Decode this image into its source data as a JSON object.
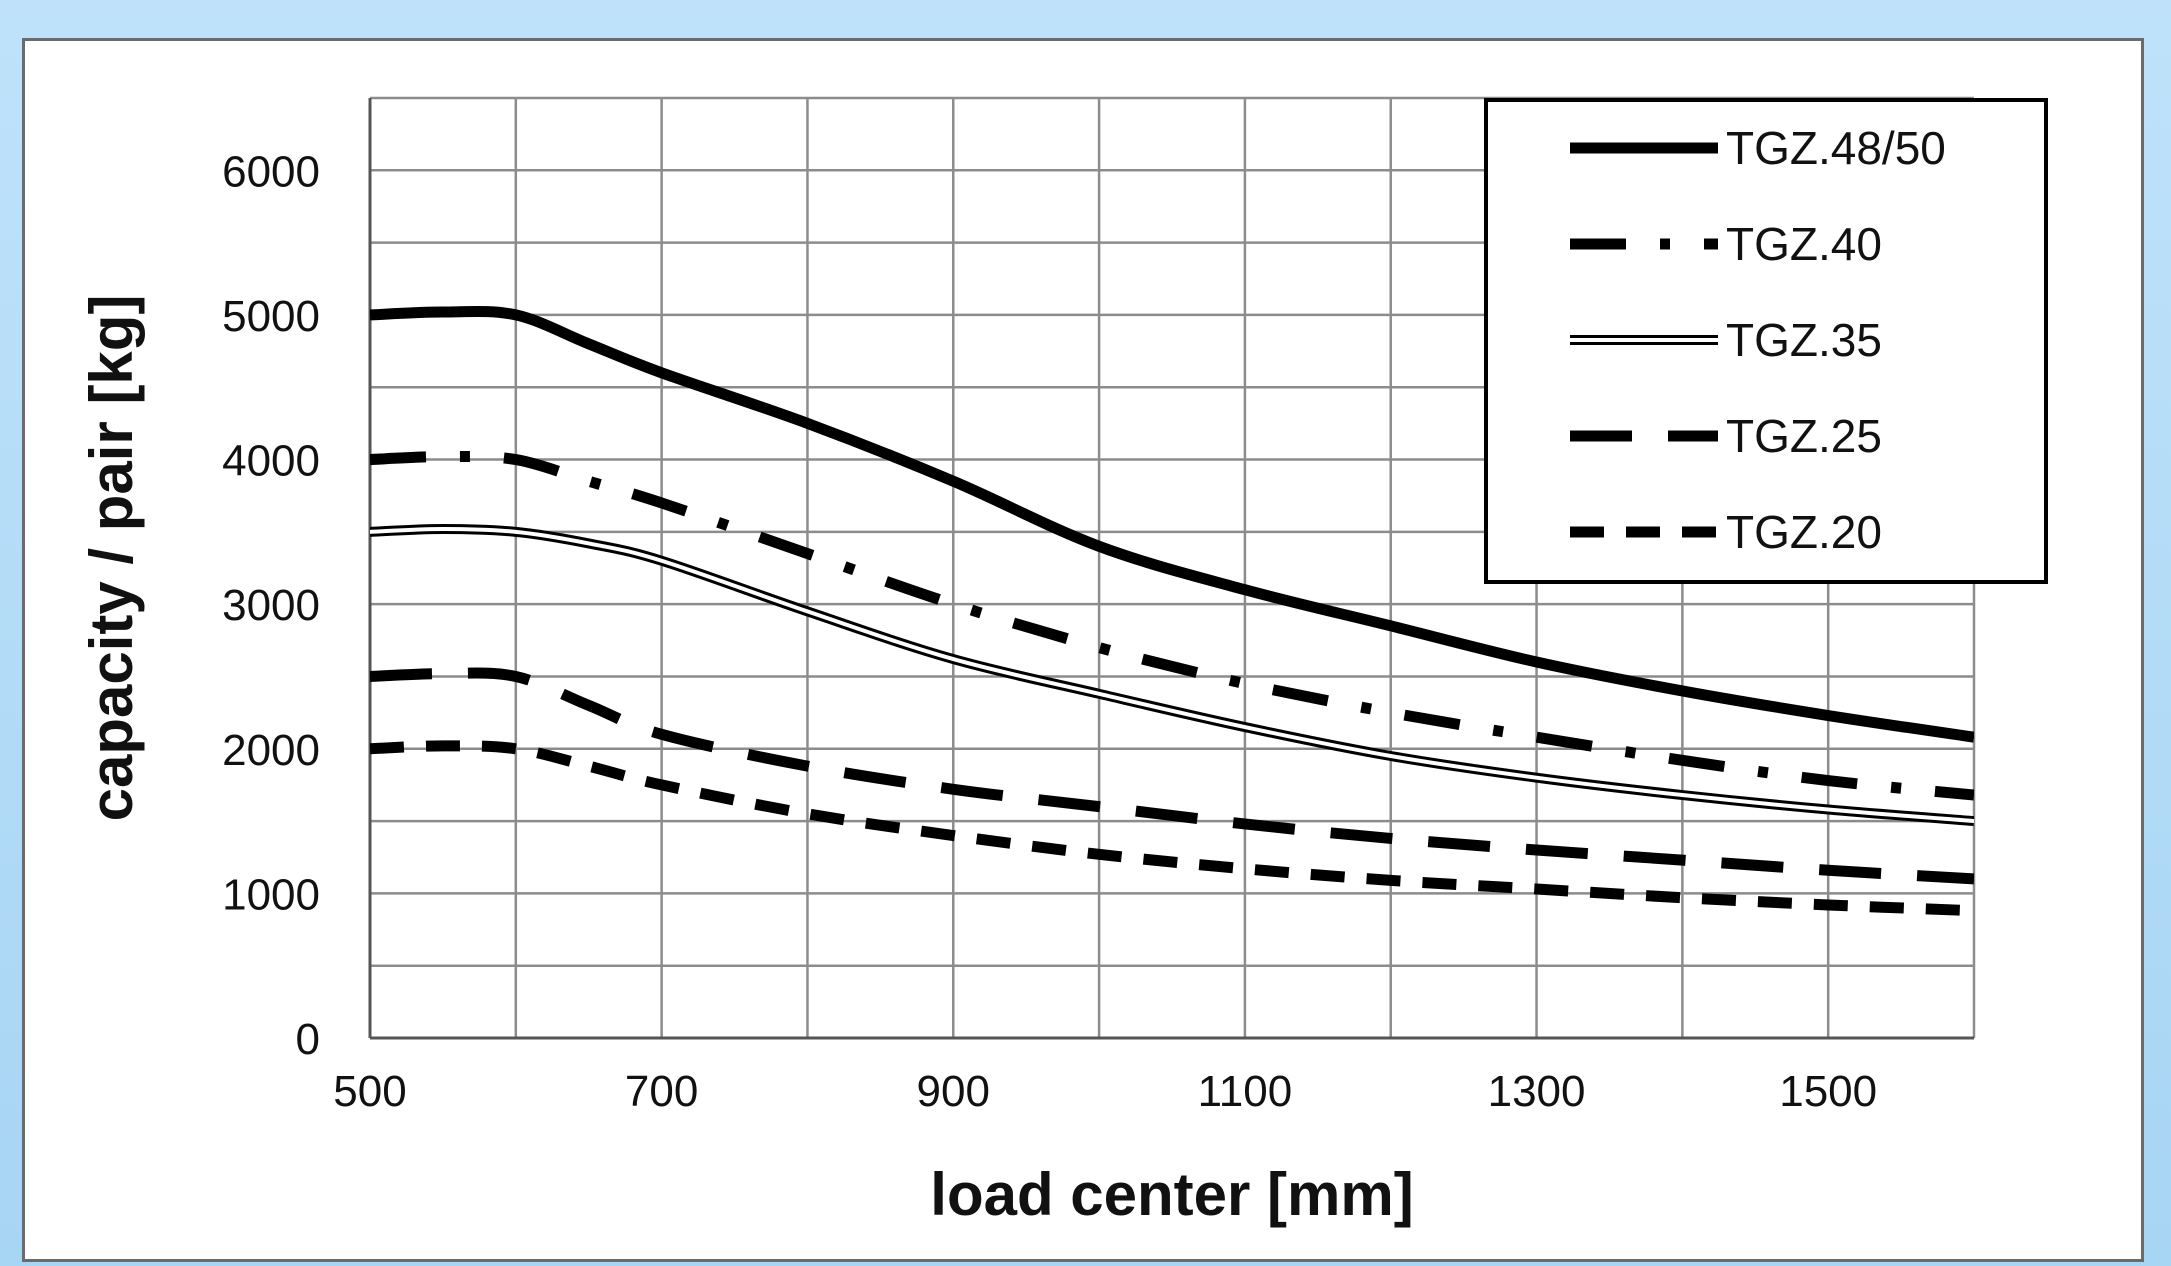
{
  "chart_data": {
    "type": "line",
    "title": "",
    "xlabel": "load center [mm]",
    "ylabel": "capacity / pair [kg]",
    "xlim": [
      500,
      1600
    ],
    "ylim": [
      0,
      6500
    ],
    "xticks": [
      500,
      700,
      900,
      1100,
      1300,
      1500
    ],
    "yticks": [
      0,
      1000,
      2000,
      3000,
      4000,
      5000,
      6000
    ],
    "grid": true,
    "legend_position": "top-right",
    "series": [
      {
        "name": "TGZ.48/50",
        "style": "solid",
        "x": [
          500,
          550,
          600,
          650,
          700,
          800,
          900,
          1000,
          1100,
          1200,
          1300,
          1400,
          1500,
          1600
        ],
        "values": [
          5000,
          5020,
          5000,
          4800,
          4600,
          4250,
          3850,
          3400,
          3100,
          2850,
          2600,
          2400,
          2230,
          2080
        ]
      },
      {
        "name": "TGZ.40",
        "style": "dash-dot",
        "x": [
          500,
          550,
          600,
          650,
          700,
          800,
          900,
          1000,
          1100,
          1200,
          1300,
          1400,
          1500,
          1600
        ],
        "values": [
          4000,
          4020,
          4000,
          3850,
          3700,
          3350,
          3000,
          2700,
          2450,
          2250,
          2080,
          1920,
          1780,
          1680
        ]
      },
      {
        "name": "TGZ.35",
        "style": "double",
        "x": [
          500,
          550,
          600,
          650,
          700,
          800,
          900,
          1000,
          1100,
          1200,
          1300,
          1400,
          1500,
          1600
        ],
        "values": [
          3500,
          3520,
          3500,
          3420,
          3300,
          2950,
          2620,
          2380,
          2150,
          1950,
          1800,
          1680,
          1580,
          1500
        ]
      },
      {
        "name": "TGZ.25",
        "style": "dashed",
        "x": [
          500,
          550,
          600,
          650,
          700,
          800,
          900,
          1000,
          1100,
          1200,
          1300,
          1400,
          1500,
          1600
        ],
        "values": [
          2500,
          2520,
          2500,
          2300,
          2100,
          1880,
          1720,
          1600,
          1480,
          1380,
          1300,
          1230,
          1160,
          1100
        ]
      },
      {
        "name": "TGZ.20",
        "style": "short-dash",
        "x": [
          500,
          550,
          600,
          650,
          700,
          800,
          900,
          1000,
          1100,
          1200,
          1300,
          1400,
          1500,
          1600
        ],
        "values": [
          2000,
          2020,
          2000,
          1880,
          1750,
          1550,
          1400,
          1270,
          1170,
          1090,
          1030,
          970,
          920,
          880
        ]
      }
    ]
  }
}
